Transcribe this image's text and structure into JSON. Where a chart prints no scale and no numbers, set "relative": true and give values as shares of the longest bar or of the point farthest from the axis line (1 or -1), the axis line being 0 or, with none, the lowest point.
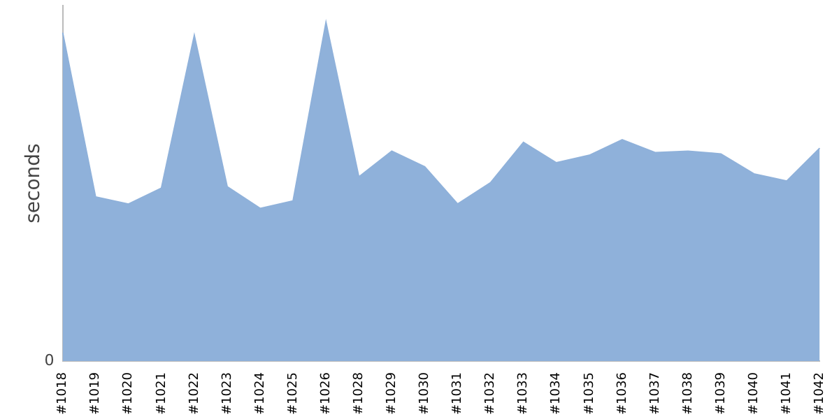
{
  "chart_data": {
    "type": "area",
    "relative": true,
    "ylabel": "seconds",
    "annotations": [
      "0"
    ],
    "grid": false,
    "legend": false,
    "color": "#8fb1da",
    "categories": [
      "#1018",
      "#1019",
      "#1020",
      "#1021",
      "#1022",
      "#1023",
      "#1024",
      "#1025",
      "#1026",
      "#1028",
      "#1029",
      "#1030",
      "#1031",
      "#1032",
      "#1033",
      "#1034",
      "#1035",
      "#1036",
      "#1037",
      "#1038",
      "#1039",
      "#1040",
      "#1041",
      "#1042"
    ],
    "values": [
      0.97,
      0.485,
      0.464,
      0.511,
      0.962,
      0.515,
      0.451,
      0.473,
      1,
      0.544,
      0.62,
      0.574,
      0.464,
      0.527,
      0.646,
      0.586,
      0.608,
      0.654,
      0.616,
      0.62,
      0.612,
      0.553,
      0.532,
      0.629
    ]
  }
}
